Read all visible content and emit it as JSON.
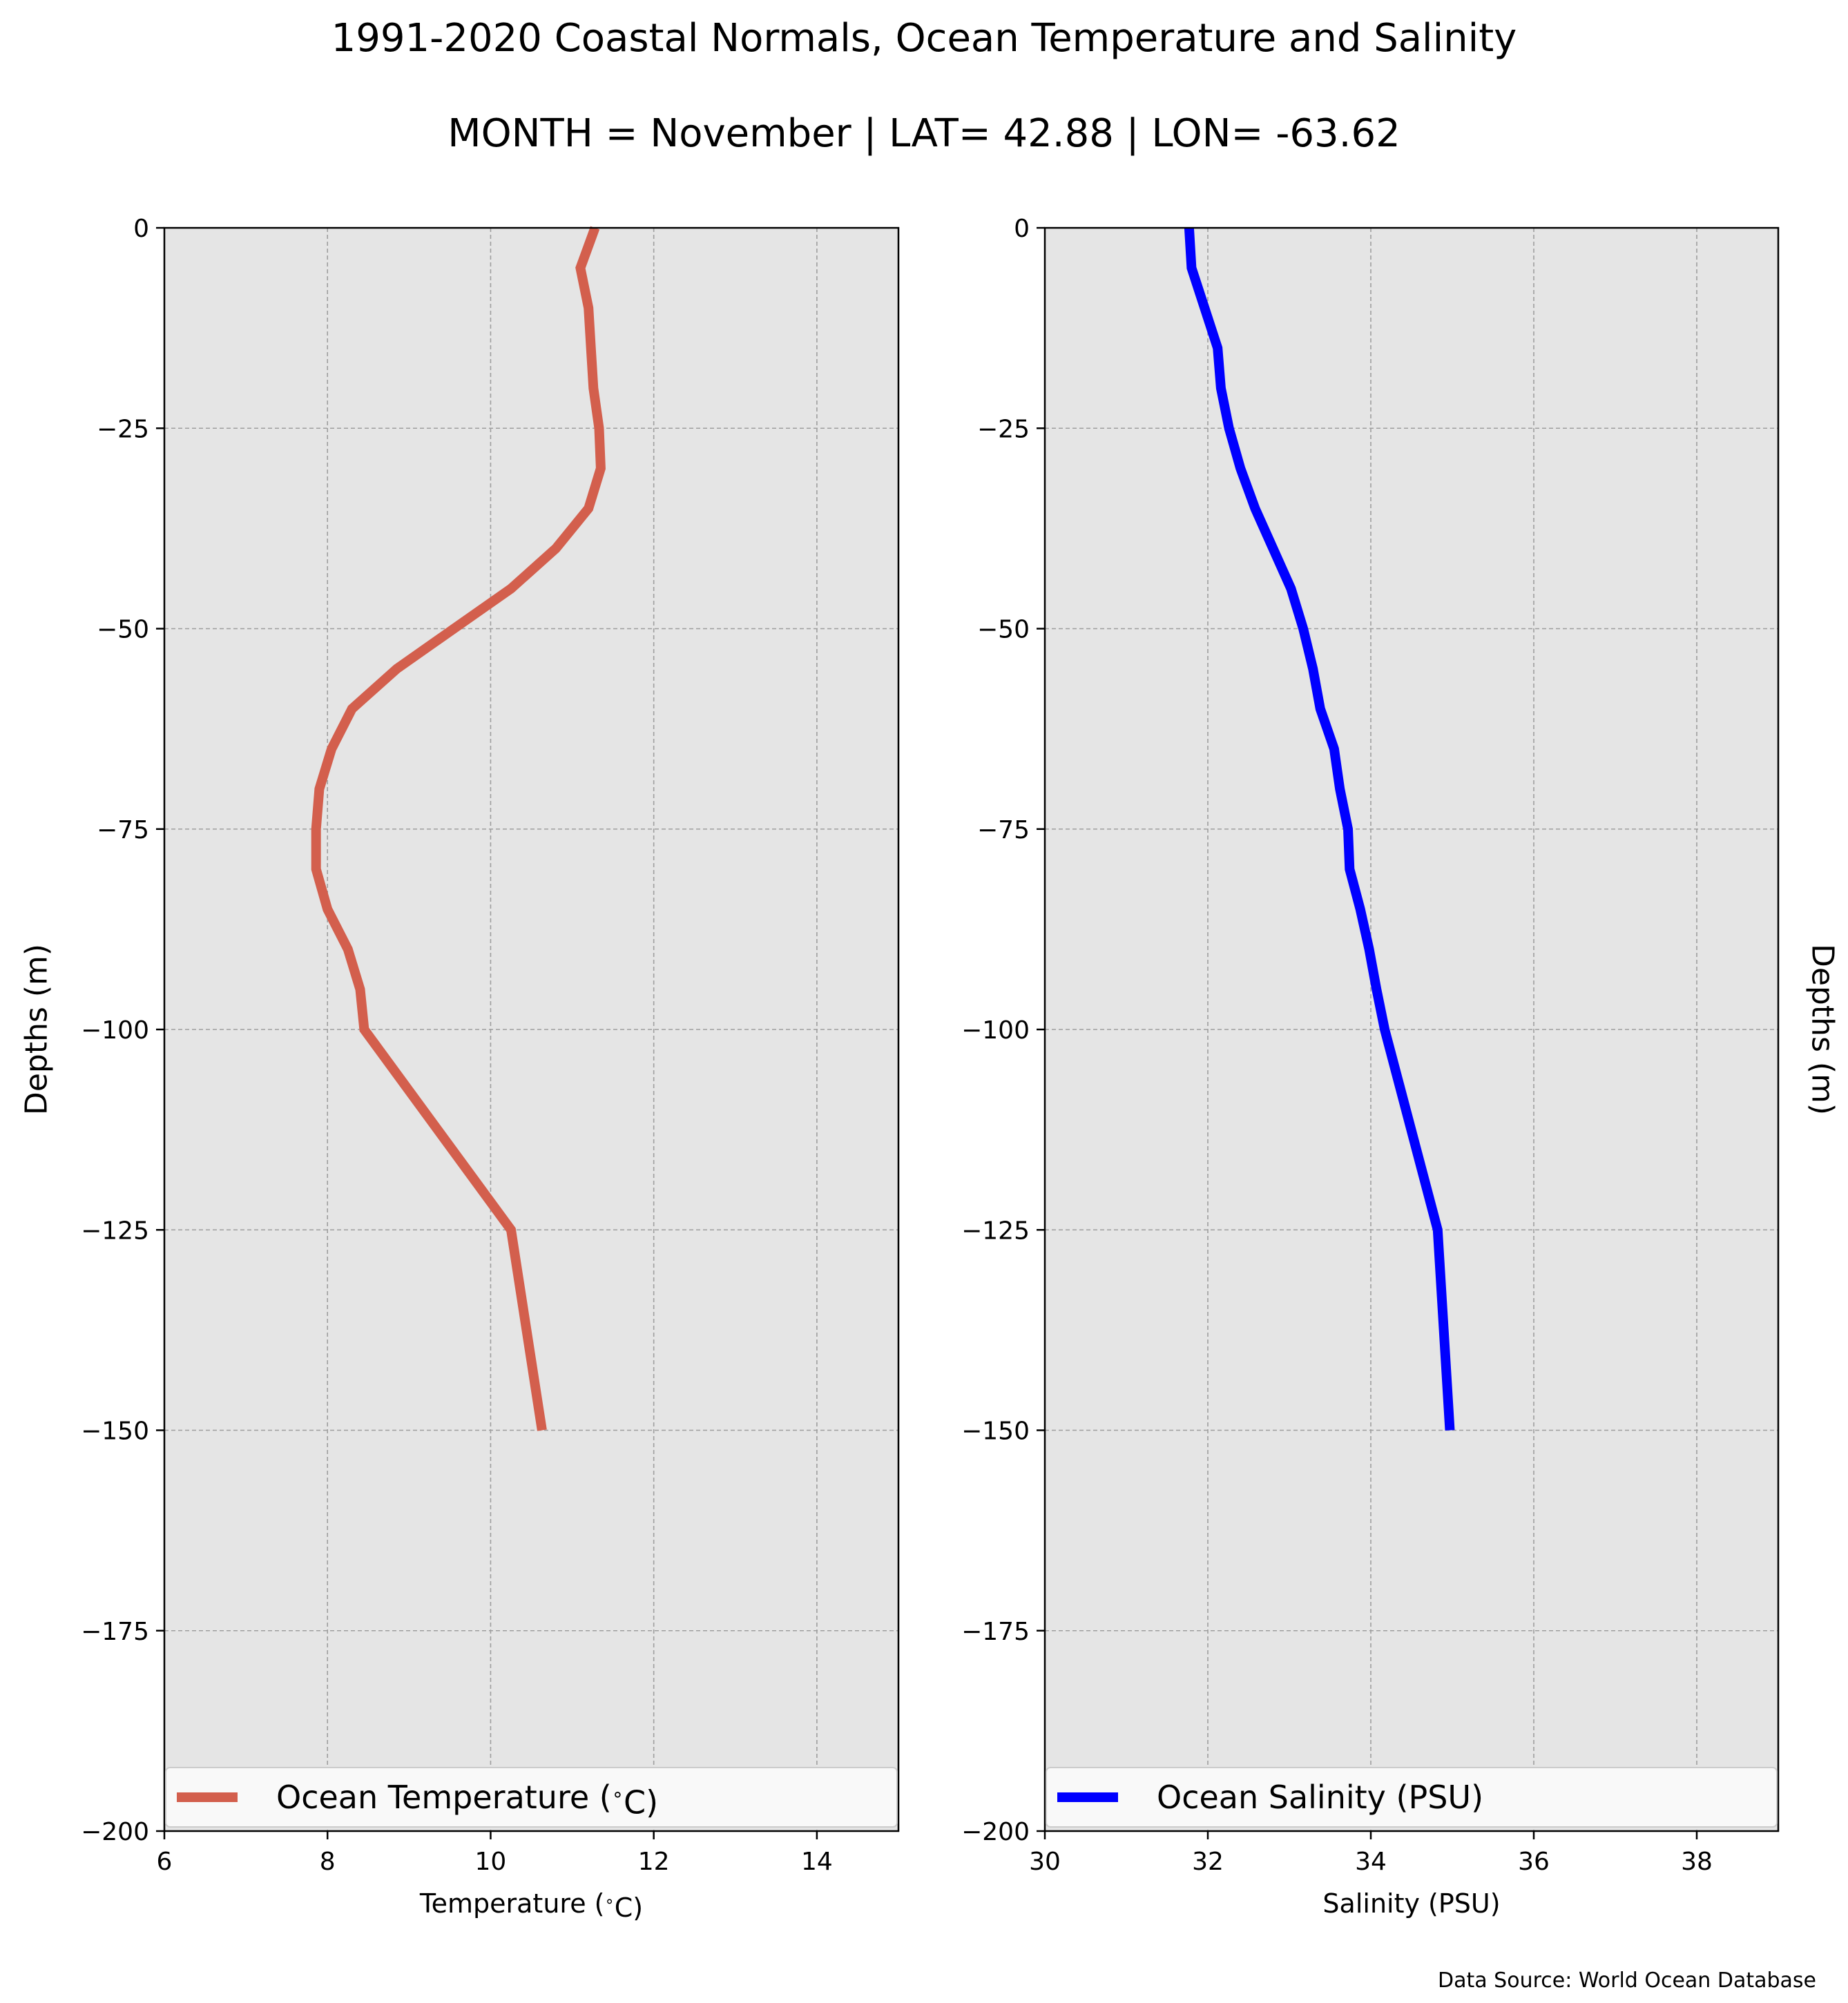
{
  "title": "1991-2020 Coastal Normals, Ocean Temperature and Salinity",
  "subtitle": "MONTH = November | LAT= 42.88 | LON= -63.62",
  "source": "Data Source: World Ocean Database",
  "colors": {
    "plot_background": "#e5e5e5",
    "grid": "#9e9e9e",
    "temperature_line": "#d35f4d",
    "salinity_line": "#0000ff"
  },
  "chart_data": [
    {
      "type": "line",
      "xlabel": "Temperature ($^\\circ$C)",
      "ylabel": "Depths (m)",
      "ylabel_side": "left",
      "xlim": [
        6,
        15
      ],
      "ylim": [
        -200,
        0
      ],
      "xticks": [
        6,
        8,
        10,
        12,
        14
      ],
      "xtick_labels": [
        "6",
        "8",
        "10",
        "12",
        "14"
      ],
      "yticks": [
        0,
        -25,
        -50,
        -75,
        -100,
        -125,
        -150,
        -175,
        -200
      ],
      "ytick_labels": [
        "0",
        "−25",
        "−50",
        "−75",
        "−100",
        "−125",
        "−150",
        "−175",
        "−200"
      ],
      "grid": true,
      "legend_position": "bottom",
      "series": [
        {
          "name": "Ocean Temperature ($^\\circ$C)",
          "color": "#d35f4d",
          "points": [
            {
              "x": 11.28,
              "y": 0
            },
            {
              "x": 11.1,
              "y": -5
            },
            {
              "x": 11.2,
              "y": -10
            },
            {
              "x": 11.23,
              "y": -15
            },
            {
              "x": 11.26,
              "y": -20
            },
            {
              "x": 11.33,
              "y": -25
            },
            {
              "x": 11.35,
              "y": -30
            },
            {
              "x": 11.2,
              "y": -35
            },
            {
              "x": 10.8,
              "y": -40
            },
            {
              "x": 10.25,
              "y": -45
            },
            {
              "x": 9.55,
              "y": -50
            },
            {
              "x": 8.85,
              "y": -55
            },
            {
              "x": 8.3,
              "y": -60
            },
            {
              "x": 8.05,
              "y": -65
            },
            {
              "x": 7.9,
              "y": -70
            },
            {
              "x": 7.86,
              "y": -75
            },
            {
              "x": 7.86,
              "y": -80
            },
            {
              "x": 8.0,
              "y": -85
            },
            {
              "x": 8.25,
              "y": -90
            },
            {
              "x": 8.4,
              "y": -95
            },
            {
              "x": 8.45,
              "y": -100
            },
            {
              "x": 10.25,
              "y": -125
            },
            {
              "x": 10.63,
              "y": -150
            }
          ]
        }
      ]
    },
    {
      "type": "line",
      "xlabel": "Salinity (PSU)",
      "ylabel": "Depths (m)",
      "ylabel_side": "right",
      "xlim": [
        30,
        39
      ],
      "ylim": [
        -200,
        0
      ],
      "xticks": [
        30,
        32,
        34,
        36,
        38
      ],
      "xtick_labels": [
        "30",
        "32",
        "34",
        "36",
        "38"
      ],
      "yticks": [
        0,
        -25,
        -50,
        -75,
        -100,
        -125,
        -150,
        -175,
        -200
      ],
      "ytick_labels": [
        "0",
        "−25",
        "−50",
        "−75",
        "−100",
        "−125",
        "−150",
        "−175",
        "−200"
      ],
      "grid": true,
      "legend_position": "bottom",
      "series": [
        {
          "name": "Ocean Salinity (PSU)",
          "color": "#0000ff",
          "points": [
            {
              "x": 31.77,
              "y": 0
            },
            {
              "x": 31.8,
              "y": -5
            },
            {
              "x": 31.96,
              "y": -10
            },
            {
              "x": 32.12,
              "y": -15
            },
            {
              "x": 32.16,
              "y": -20
            },
            {
              "x": 32.26,
              "y": -25
            },
            {
              "x": 32.4,
              "y": -30
            },
            {
              "x": 32.58,
              "y": -35
            },
            {
              "x": 32.8,
              "y": -40
            },
            {
              "x": 33.02,
              "y": -45
            },
            {
              "x": 33.17,
              "y": -50
            },
            {
              "x": 33.29,
              "y": -55
            },
            {
              "x": 33.38,
              "y": -60
            },
            {
              "x": 33.55,
              "y": -65
            },
            {
              "x": 33.62,
              "y": -70
            },
            {
              "x": 33.72,
              "y": -75
            },
            {
              "x": 33.74,
              "y": -80
            },
            {
              "x": 33.87,
              "y": -85
            },
            {
              "x": 33.98,
              "y": -90
            },
            {
              "x": 34.07,
              "y": -95
            },
            {
              "x": 34.17,
              "y": -100
            },
            {
              "x": 34.82,
              "y": -125
            },
            {
              "x": 34.97,
              "y": -150
            }
          ]
        }
      ]
    }
  ]
}
